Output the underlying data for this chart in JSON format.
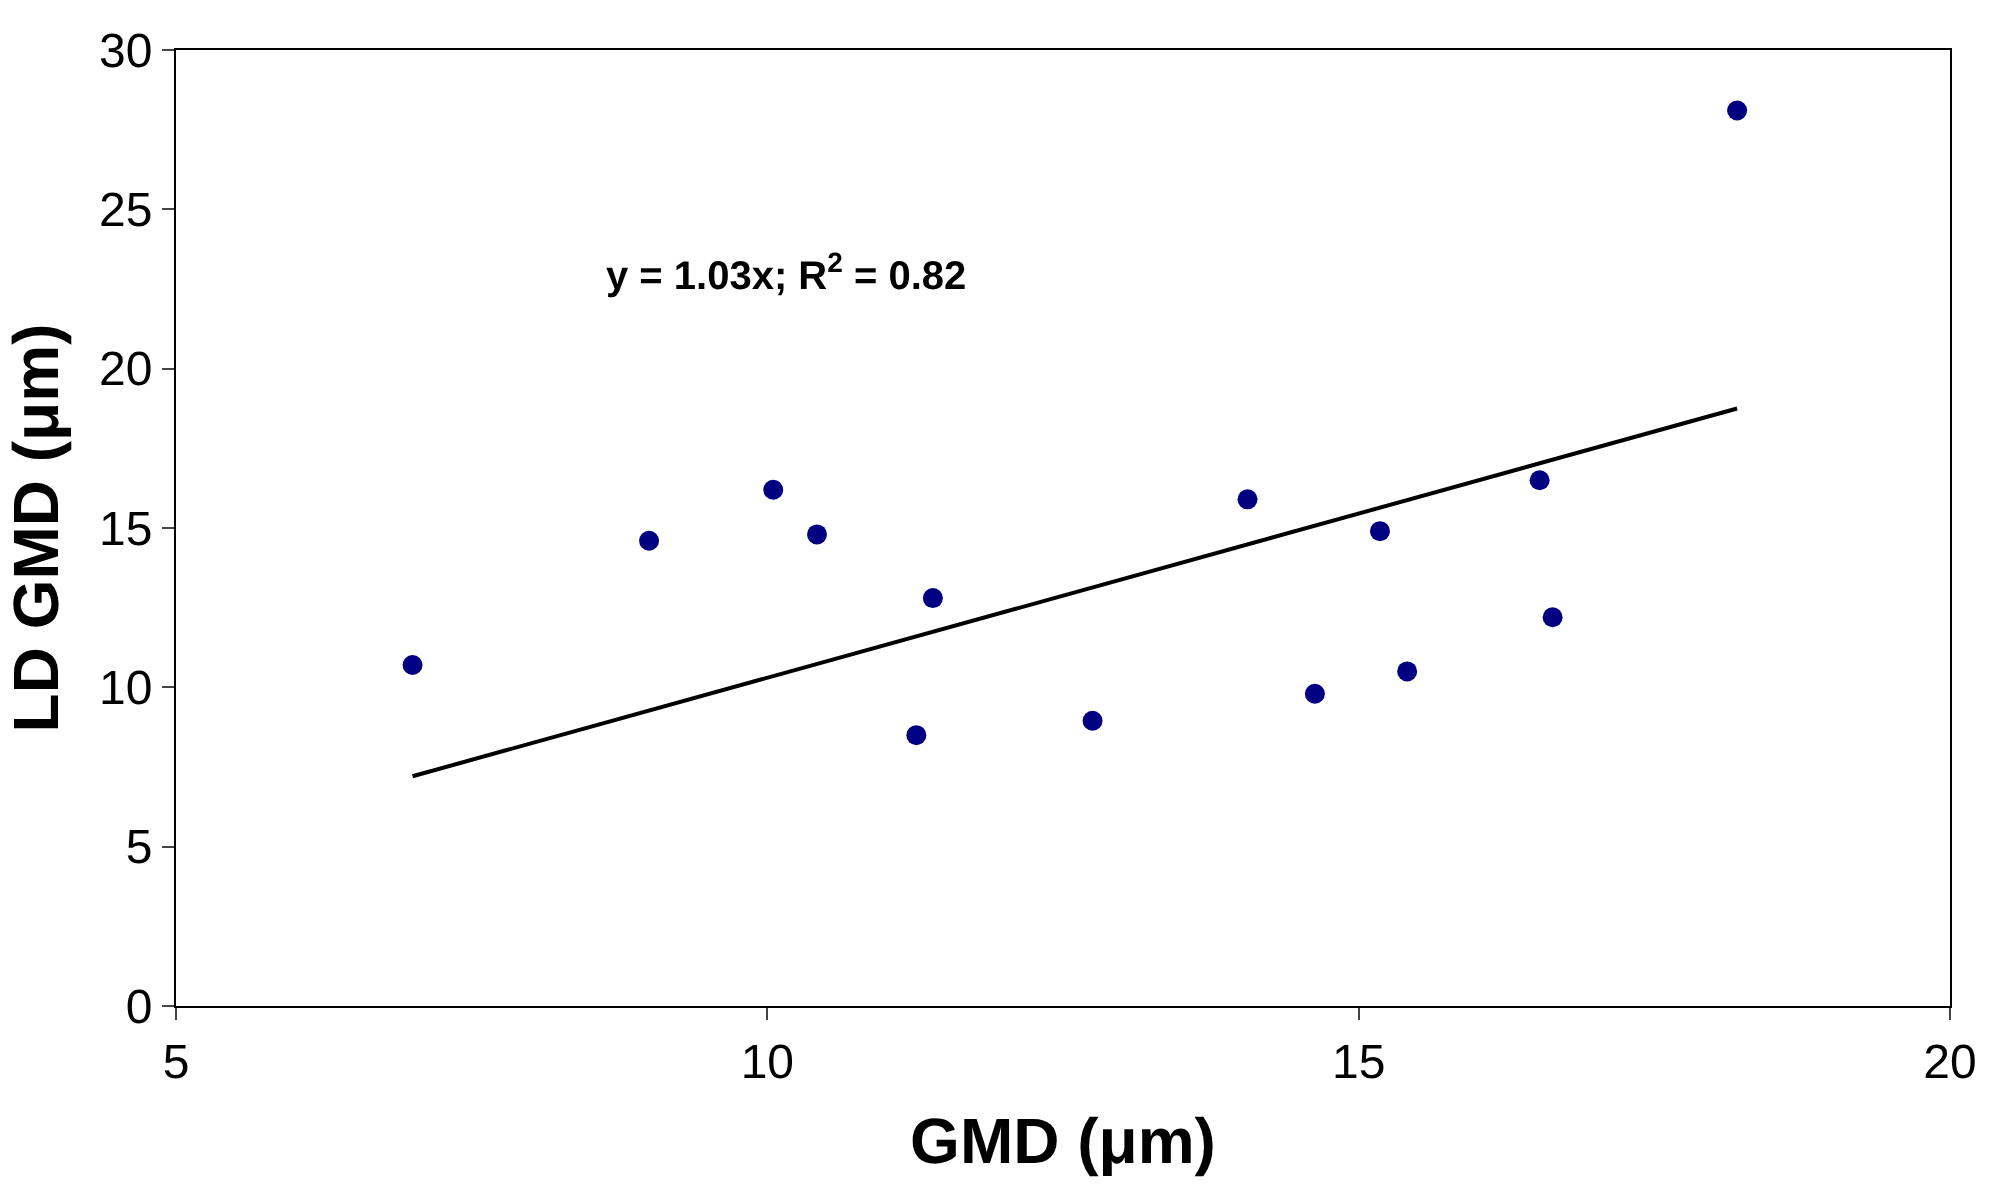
{
  "chart_data": {
    "type": "scatter",
    "xlabel": "GMD (μm)",
    "ylabel": "LD GMD (μm)",
    "annotations": [
      "y = 1.03x; R$^{2}$ = 0.82"
    ],
    "xlim": [
      5,
      20
    ],
    "xticks": [
      5,
      10,
      15,
      20
    ],
    "ylim": [
      0,
      30
    ],
    "yticks": [
      0,
      5,
      10,
      15,
      20,
      25,
      30
    ],
    "marker": "circle",
    "series": [
      {
        "color": "#000080",
        "x": [
          7.0,
          9.0,
          10.05,
          10.42,
          11.26,
          11.4,
          12.75,
          14.06,
          14.63,
          15.18,
          15.41,
          16.53,
          16.64,
          18.2
        ],
        "values": [
          10.7,
          14.6,
          16.2,
          14.8,
          8.5,
          12.8,
          8.95,
          15.9,
          9.8,
          14.9,
          10.5,
          16.5,
          12.2,
          28.1
        ]
      },
      {
        "type": "line",
        "color": "#000000",
        "line_style": "solid",
        "marker": "none",
        "x": [
          7.0,
          18.2
        ],
        "values": [
          7.21,
          18.75
        ]
      }
    ]
  }
}
